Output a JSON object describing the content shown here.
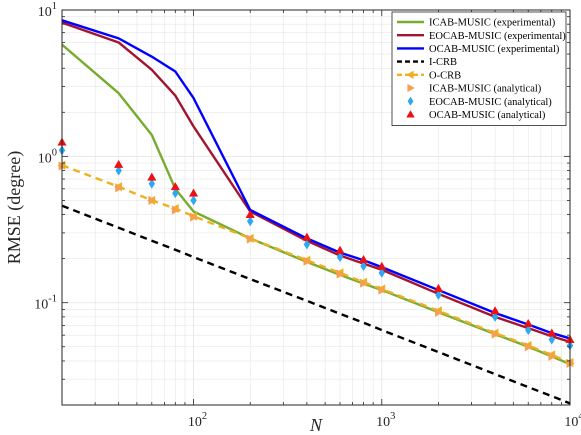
{
  "chart_data": {
    "type": "line",
    "xlabel": "N",
    "ylabel": "RMSE (degree)",
    "xscale": "log",
    "yscale": "log",
    "xlim": [
      20,
      10000
    ],
    "ylim": [
      0.02,
      10
    ],
    "grid": true,
    "legend_position": "top-right",
    "x_ticks": [
      {
        "value": 100,
        "base": "10",
        "exp": "2"
      },
      {
        "value": 1000,
        "base": "10",
        "exp": "3"
      },
      {
        "value": 10000,
        "base": "10",
        "exp": "4"
      }
    ],
    "y_ticks": [
      {
        "value": 0.1,
        "base": "10",
        "exp": "-1"
      },
      {
        "value": 1,
        "base": "10",
        "exp": "0"
      },
      {
        "value": 10,
        "base": "10",
        "exp": "1"
      }
    ],
    "x": [
      20,
      40,
      60,
      80,
      100,
      200,
      400,
      600,
      800,
      1000,
      2000,
      4000,
      6000,
      8000,
      10000
    ],
    "series": [
      {
        "name": "ICAB-MUSIC (experimental)",
        "style": "line",
        "color": "#77ac30",
        "dash": "",
        "values": [
          5.8,
          2.7,
          1.4,
          0.6,
          0.42,
          0.275,
          0.19,
          0.155,
          0.135,
          0.122,
          0.086,
          0.061,
          0.05,
          0.043,
          0.038
        ]
      },
      {
        "name": "EOCAB-MUSIC (experimental)",
        "style": "line",
        "color": "#a2142f",
        "dash": "",
        "values": [
          8.2,
          6.0,
          3.9,
          2.6,
          1.6,
          0.42,
          0.265,
          0.21,
          0.185,
          0.168,
          0.115,
          0.08,
          0.067,
          0.059,
          0.054
        ]
      },
      {
        "name": "OCAB-MUSIC (experimental)",
        "style": "line",
        "color": "#0000ff",
        "dash": "",
        "values": [
          8.5,
          6.4,
          4.8,
          3.8,
          2.5,
          0.43,
          0.275,
          0.22,
          0.195,
          0.175,
          0.122,
          0.085,
          0.071,
          0.062,
          0.057
        ]
      },
      {
        "name": "I-CRB",
        "style": "line",
        "color": "#000000",
        "dash": "7 5",
        "values": [
          0.46,
          0.325,
          0.265,
          0.23,
          0.205,
          0.145,
          0.103,
          0.084,
          0.073,
          0.065,
          0.046,
          0.0325,
          0.0265,
          0.023,
          0.0205
        ]
      },
      {
        "name": "O-CRB",
        "style": "line-marker",
        "color": "#edb120",
        "dash": "7 5",
        "marker": "triangle-left",
        "values": [
          0.87,
          0.62,
          0.5,
          0.44,
          0.39,
          0.275,
          0.195,
          0.16,
          0.138,
          0.124,
          0.088,
          0.062,
          0.051,
          0.044,
          0.039
        ]
      },
      {
        "name": "ICAB-MUSIC (analytical)",
        "style": "marker",
        "color": "#f5a04f",
        "marker": "triangle-right",
        "values": [
          0.86,
          0.61,
          0.5,
          0.43,
          0.385,
          0.272,
          0.192,
          0.157,
          0.136,
          0.122,
          0.086,
          0.061,
          0.05,
          0.043,
          0.0385
        ]
      },
      {
        "name": "EOCAB-MUSIC (analytical)",
        "style": "marker",
        "color": "#2ea8f0",
        "marker": "diamond",
        "values": [
          1.1,
          0.8,
          0.65,
          0.56,
          0.5,
          0.36,
          0.25,
          0.205,
          0.178,
          0.16,
          0.113,
          0.08,
          0.065,
          0.056,
          0.051
        ]
      },
      {
        "name": "OCAB-MUSIC (analytical)",
        "style": "marker",
        "color": "#ee1111",
        "marker": "triangle-up",
        "values": [
          1.25,
          0.88,
          0.72,
          0.62,
          0.56,
          0.4,
          0.28,
          0.228,
          0.197,
          0.177,
          0.125,
          0.088,
          0.072,
          0.062,
          0.056
        ]
      }
    ]
  }
}
